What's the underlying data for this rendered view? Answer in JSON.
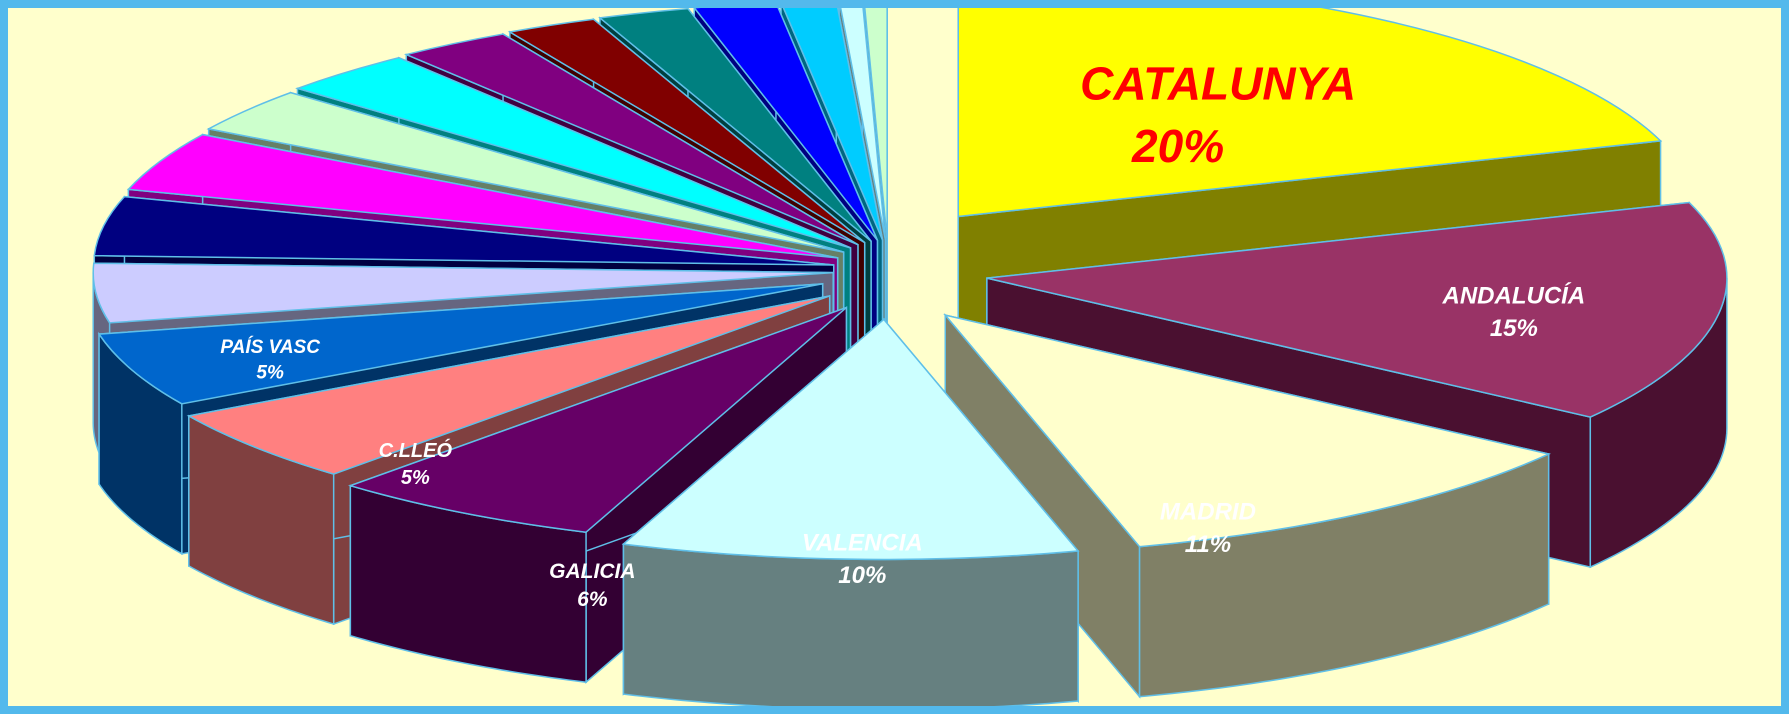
{
  "chart_data": {
    "type": "pie",
    "style": "3d-exploded",
    "title": "",
    "legend": "none",
    "slices": [
      {
        "label": "CATALUNYA",
        "value": 20,
        "value_label": "20%",
        "color": "#ffff00",
        "side_color": "#808000",
        "label_color": "#ff0000"
      },
      {
        "label": "ANDALUCÍA",
        "value": 15,
        "value_label": "15%",
        "color": "#993366",
        "side_color": "#4a1030",
        "label_color": "#ffffff"
      },
      {
        "label": "MADRID",
        "value": 11,
        "value_label": "11%",
        "color": "#ffffcc",
        "side_color": "#808066",
        "label_color": "#ffffff"
      },
      {
        "label": "VALENCIA",
        "value": 10,
        "value_label": "10%",
        "color": "#ccffff",
        "side_color": "#668080",
        "label_color": "#ffffff"
      },
      {
        "label": "GALICIA",
        "value": 6,
        "value_label": "6%",
        "color": "#660066",
        "side_color": "#330033",
        "label_color": "#ffffff"
      },
      {
        "label": "C.LLEÓ",
        "value": 5,
        "value_label": "5%",
        "color": "#ff8080",
        "side_color": "#804040",
        "label_color": "#ffffff"
      },
      {
        "label": "PAÍS VASC",
        "value": 5,
        "value_label": "5%",
        "color": "#0066cc",
        "side_color": "#003366",
        "label_color": "#ffffff"
      },
      {
        "label": "",
        "value": 4,
        "value_label": "",
        "color": "#ccccff",
        "side_color": "#666680",
        "label_color": "#ffffff"
      },
      {
        "label": "",
        "value": 4,
        "value_label": "",
        "color": "#000080",
        "side_color": "#000040",
        "label_color": "#ffffff"
      },
      {
        "label": "",
        "value": 4,
        "value_label": "",
        "color": "#ff00ff",
        "side_color": "#800080",
        "label_color": "#ffffff"
      },
      {
        "label": "",
        "value": 3,
        "value_label": "",
        "color": "#ccffcc",
        "side_color": "#668066",
        "label_color": "#ffffff"
      },
      {
        "label": "",
        "value": 3,
        "value_label": "",
        "color": "#00ffff",
        "side_color": "#008080",
        "label_color": "#ffffff"
      },
      {
        "label": "",
        "value": 2.5,
        "value_label": "",
        "color": "#800080",
        "side_color": "#400040",
        "label_color": "#ffffff"
      },
      {
        "label": "",
        "value": 2,
        "value_label": "",
        "color": "#800000",
        "side_color": "#400000",
        "label_color": "#ffffff"
      },
      {
        "label": "",
        "value": 2,
        "value_label": "",
        "color": "#008080",
        "side_color": "#004040",
        "label_color": "#ffffff"
      },
      {
        "label": "",
        "value": 1.8,
        "value_label": "",
        "color": "#0000ff",
        "side_color": "#000080",
        "label_color": "#ffffff"
      },
      {
        "label": "",
        "value": 1.2,
        "value_label": "",
        "color": "#00ccff",
        "side_color": "#006680",
        "label_color": "#ffffff"
      },
      {
        "label": "",
        "value": 0.5,
        "value_label": "",
        "color": "#ccffff",
        "side_color": "#668080",
        "label_color": "#ffffff"
      },
      {
        "label": "",
        "value": 0.5,
        "value_label": "",
        "color": "#ccffcc",
        "side_color": "#668066",
        "label_color": "#ffffff"
      }
    ]
  }
}
